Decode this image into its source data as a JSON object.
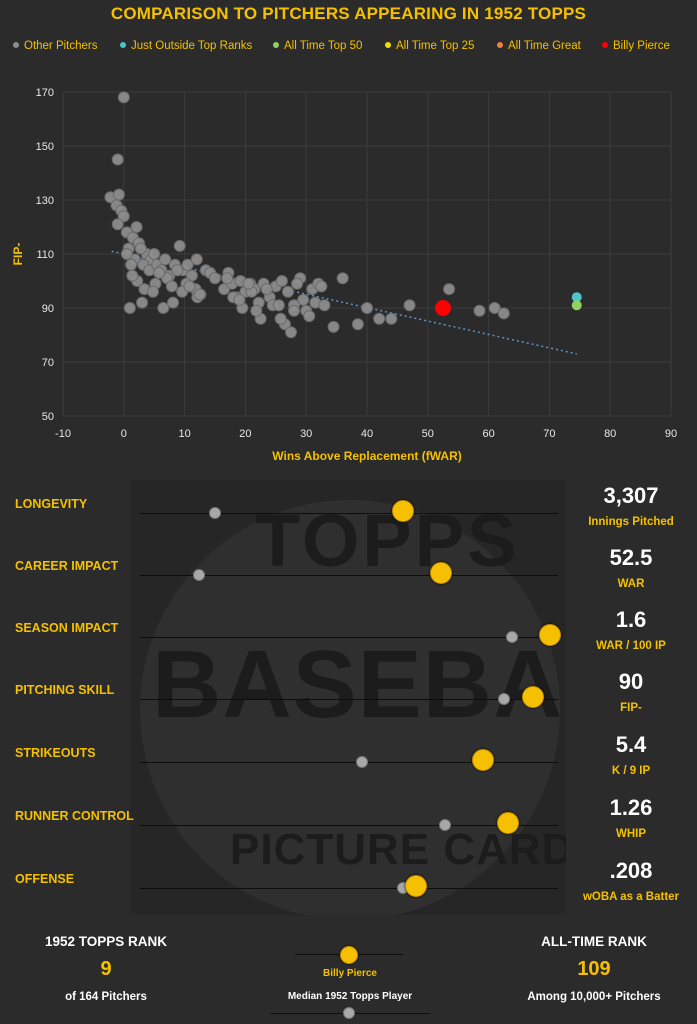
{
  "title": "COMPARISON TO PITCHERS APPEARING IN 1952 TOPPS",
  "legend": [
    {
      "label": "Other Pitchers",
      "color": "#8c8c8c"
    },
    {
      "label": "Just Outside Top Ranks",
      "color": "#4fc3c8"
    },
    {
      "label": "All Time Top 50",
      "color": "#8fd060"
    },
    {
      "label": "All Time Top 25",
      "color": "#f0e000"
    },
    {
      "label": "All Time Great",
      "color": "#f08040"
    },
    {
      "label": "Billy Pierce",
      "color": "#ff0000"
    }
  ],
  "chart_data": {
    "type": "scatter",
    "title": "COMPARISON TO PITCHERS APPEARING IN 1952 TOPPS",
    "xlabel": "Wins Above Replacement (fWAR)",
    "ylabel": "FIP-",
    "xlim": [
      -10,
      90
    ],
    "ylim": [
      50,
      170
    ],
    "xticks": [
      -10,
      0,
      10,
      20,
      30,
      40,
      50,
      60,
      70,
      80,
      90
    ],
    "yticks": [
      50,
      70,
      90,
      110,
      130,
      150,
      170
    ],
    "grid": "vertical and horizontal",
    "trendline": {
      "x": [
        -2,
        74.5
      ],
      "y": [
        111,
        73
      ]
    },
    "series": [
      {
        "name": "Other Pitchers",
        "color": "#8c8c8c",
        "x": [
          0,
          -1,
          -2.2,
          -0.8,
          -1.2,
          -0.4,
          0,
          0.5,
          -1,
          1.5,
          2.1,
          0.8,
          1.8,
          2.5,
          0.5,
          1.2,
          3.8,
          4.5,
          3.2,
          2.8,
          4.2,
          5.5,
          6.2,
          6.8,
          7.5,
          8.4,
          9.2,
          9.8,
          10.5,
          11.2,
          12,
          13.5,
          14.2,
          15,
          5.2,
          7.1,
          8.8,
          10.3,
          11.8,
          12.6,
          3.4,
          2.2,
          5.8,
          7.9,
          9.6,
          12.1,
          1.4,
          3,
          4.8,
          6.5,
          8.1,
          10.8,
          16.5,
          17.2,
          17.8,
          18.5,
          19.2,
          20,
          20.8,
          21.5,
          22.2,
          23,
          24,
          25,
          26,
          27,
          28,
          29,
          30,
          31,
          32,
          18,
          19.5,
          21,
          22.5,
          24.5,
          26.5,
          28.5,
          30.5,
          32.5,
          19,
          21.8,
          23.5,
          25.8,
          27.5,
          29.5,
          31.5,
          17,
          20.5,
          25.5,
          28,
          33,
          34.5,
          36,
          38.5,
          40,
          42,
          44,
          47,
          53.5,
          58.5,
          61,
          62.5,
          12.5,
          5,
          1
        ],
        "y": [
          168,
          145,
          131,
          132,
          128,
          126,
          124,
          118,
          121,
          116,
          120,
          112,
          108,
          114,
          110,
          106,
          110,
          108,
          106,
          112,
          104,
          106,
          104,
          108,
          102,
          106,
          113,
          104,
          106,
          102,
          108,
          104,
          103,
          101,
          99,
          101,
          104,
          99,
          97,
          95,
          97,
          100,
          103,
          98,
          96,
          94,
          102,
          92,
          96,
          90,
          92,
          98,
          97,
          103,
          99,
          94,
          100,
          96,
          99,
          97,
          92,
          99,
          94,
          98,
          100,
          96,
          91,
          101,
          89,
          97,
          99,
          94,
          90,
          96,
          86,
          91,
          84,
          99,
          87,
          98,
          93,
          89,
          97,
          86,
          81,
          93,
          92,
          101,
          99,
          91,
          89,
          91,
          83,
          101,
          84,
          90,
          86,
          86,
          91,
          97,
          89,
          90,
          88,
          95,
          110,
          90
        ]
      },
      {
        "name": "Just Outside Top Ranks",
        "color": "#4fc3c8",
        "x": [
          74.5
        ],
        "y": [
          94
        ]
      },
      {
        "name": "All Time Top 50",
        "color": "#8fd060",
        "x": [
          74.5
        ],
        "y": [
          91
        ]
      },
      {
        "name": "Billy Pierce",
        "color": "#ff0000",
        "x": [
          52.5
        ],
        "y": [
          90
        ]
      }
    ]
  },
  "metrics": [
    {
      "label": "LONGEVITY",
      "value": "3,307",
      "unit": "Innings Pitched",
      "median_pos": 0.18,
      "player_pos": 0.63
    },
    {
      "label": "CAREER IMPACT",
      "value": "52.5",
      "unit": "WAR",
      "median_pos": 0.14,
      "player_pos": 0.72
    },
    {
      "label": "SEASON IMPACT",
      "value": "1.6",
      "unit": "WAR / 100 IP",
      "median_pos": 0.89,
      "player_pos": 0.98
    },
    {
      "label": "PITCHING SKILL",
      "value": "90",
      "unit": "FIP-",
      "median_pos": 0.87,
      "player_pos": 0.94
    },
    {
      "label": "STRIKEOUTS",
      "value": "5.4",
      "unit": "K / 9 IP",
      "median_pos": 0.53,
      "player_pos": 0.82
    },
    {
      "label": "RUNNER CONTROL",
      "value": "1.26",
      "unit": "WHIP",
      "median_pos": 0.73,
      "player_pos": 0.88
    },
    {
      "label": "OFFENSE",
      "value": ".208",
      "unit": "wOBA as a Batter",
      "median_pos": 0.63,
      "player_pos": 0.66
    }
  ],
  "watermark": {
    "line1": "TOPPS",
    "line2": "BASEBALL",
    "line3": "PICTURE CARDS"
  },
  "rank_left": {
    "heading": "1952 TOPPS RANK",
    "value": "9",
    "sub": "of 164 Pitchers"
  },
  "rank_right": {
    "heading": "ALL-TIME RANK",
    "value": "109",
    "sub": "Among 10,000+ Pitchers"
  },
  "key": {
    "player_label": "Billy Pierce",
    "median_label": "Median 1952 Topps Player"
  }
}
